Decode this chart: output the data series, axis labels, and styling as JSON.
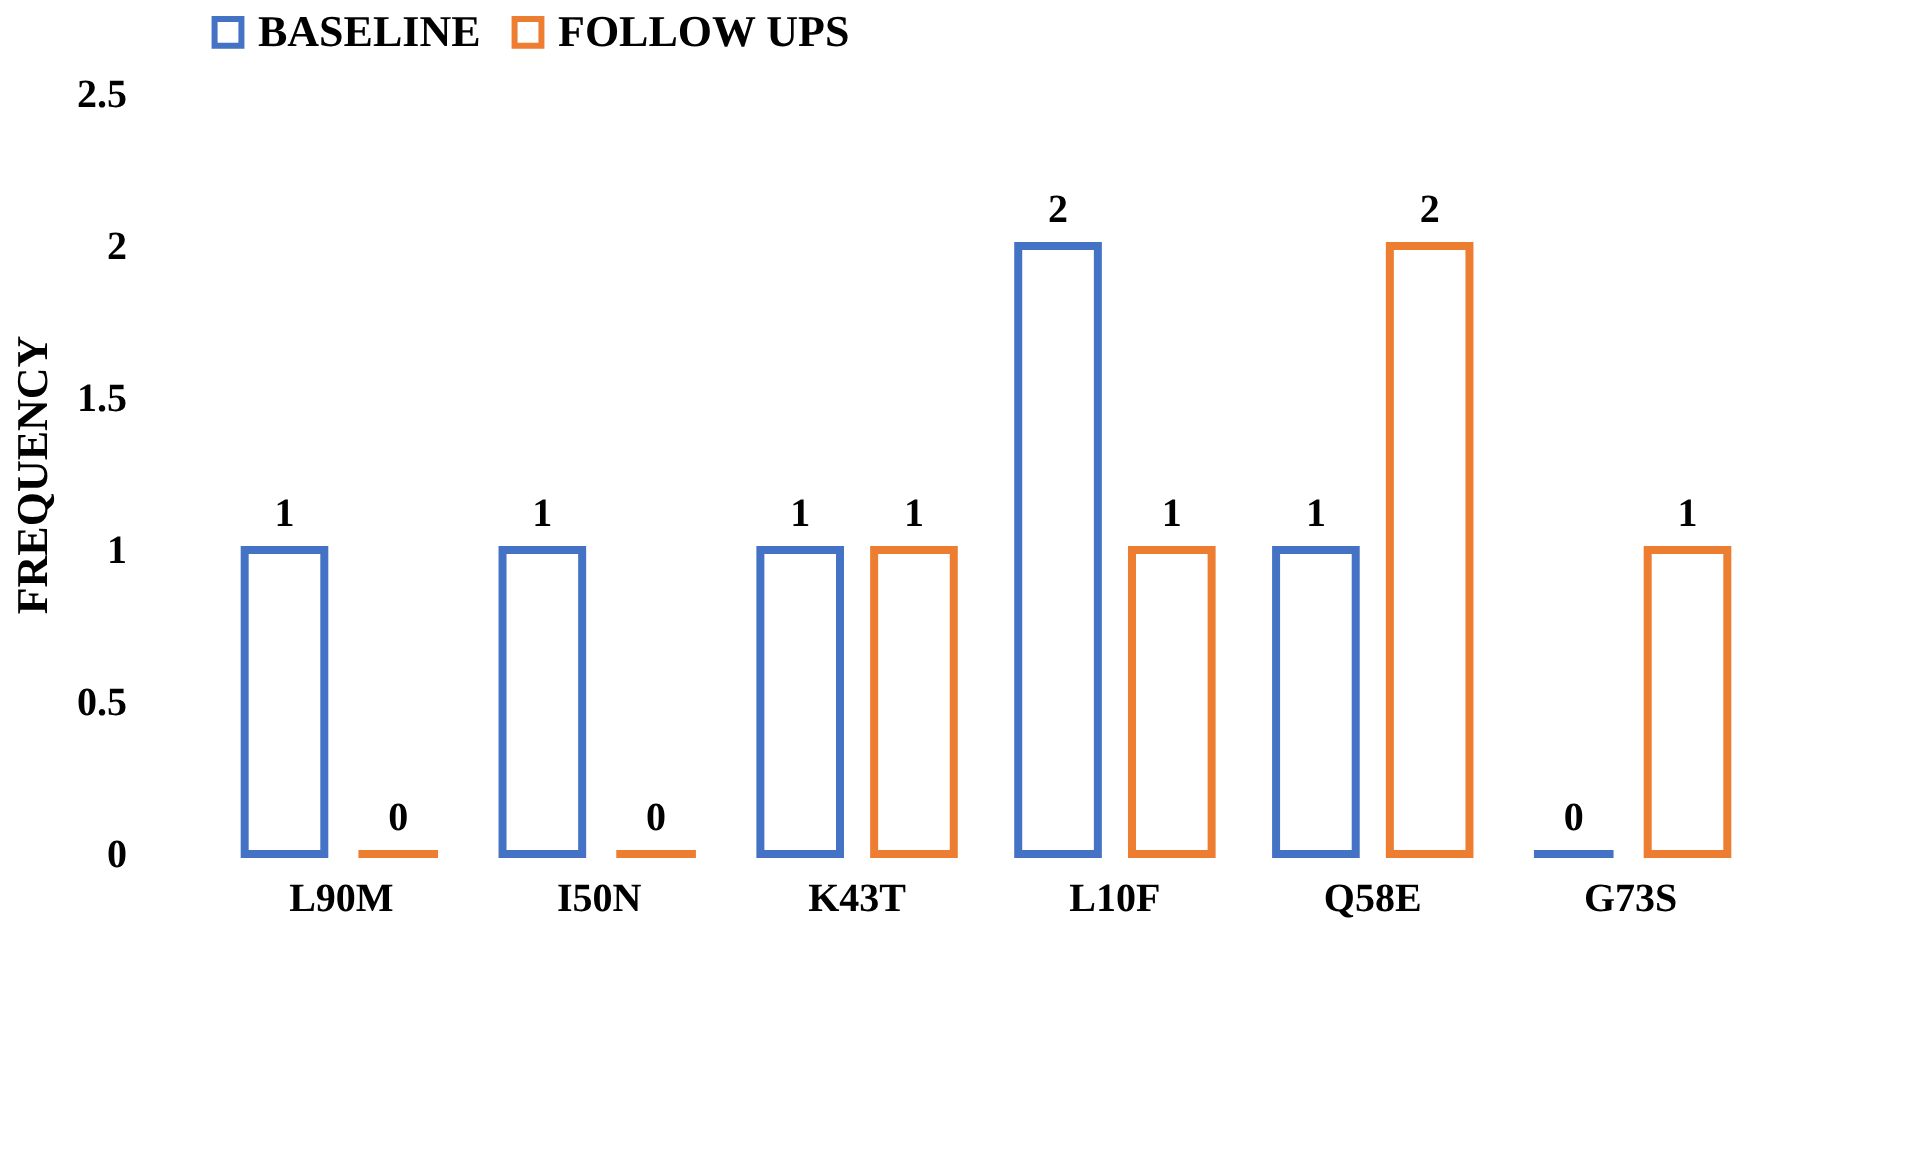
{
  "chart_data": {
    "type": "bar",
    "ylabel": "FREQUENCY",
    "categories": [
      "L90M",
      "I50N",
      "K43T",
      "L10F",
      "Q58E",
      "G73S"
    ],
    "series": [
      {
        "name": "BASELINE",
        "color": "#4472c4",
        "values": [
          1,
          1,
          1,
          2,
          1,
          0
        ]
      },
      {
        "name": "FOLLOW UPS",
        "color": "#ed7d31",
        "values": [
          0,
          0,
          1,
          1,
          2,
          1
        ]
      }
    ],
    "ylim": [
      0,
      2.5
    ],
    "yticks": [
      0,
      0.5,
      1,
      1.5,
      2,
      2.5
    ],
    "grid": false,
    "legend": "top",
    "data_labels": true
  }
}
